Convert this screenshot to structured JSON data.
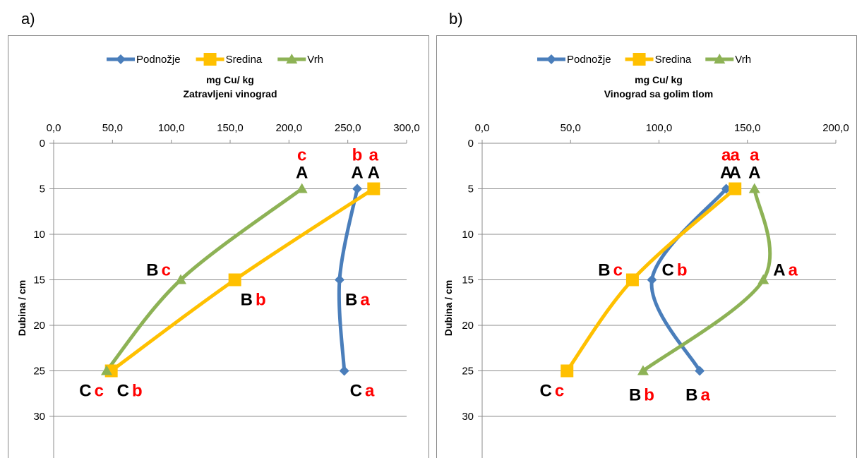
{
  "panels": [
    {
      "label": "a)"
    },
    {
      "label": "b)"
    }
  ],
  "chart_data": [
    {
      "type": "line",
      "title": "mg Cu/ kg",
      "subtitle": "Zatravljeni vinograd",
      "xlabel": "",
      "ylabel": "Dubina / cm",
      "xlim": [
        0,
        300
      ],
      "x_ticks": [
        "0,0",
        "50,0",
        "100,0",
        "150,0",
        "200,0",
        "250,0",
        "300,0"
      ],
      "ylim": [
        0,
        30
      ],
      "y_reversed": true,
      "y_ticks": [
        "0",
        "5",
        "10",
        "15",
        "20",
        "25",
        "30"
      ],
      "x_axis_position": "top",
      "grid": true,
      "legend_position": "top",
      "series": [
        {
          "name": "Podnožje",
          "color": "#4A7EBB",
          "marker": "diamond",
          "points": [
            {
              "x": 258,
              "y": 5
            },
            {
              "x": 243,
              "y": 15
            },
            {
              "x": 247,
              "y": 25
            }
          ],
          "labels": [
            {
              "upper": "A",
              "lower": "b",
              "pos": "above"
            },
            {
              "upper": "B",
              "lower": "a",
              "pos": "below-right"
            },
            {
              "upper": "C",
              "lower": "a",
              "pos": "below-right"
            }
          ]
        },
        {
          "name": "Sredina",
          "color": "#FFC000",
          "marker": "square",
          "points": [
            {
              "x": 272,
              "y": 5
            },
            {
              "x": 154,
              "y": 15
            },
            {
              "x": 49,
              "y": 25
            }
          ],
          "labels": [
            {
              "upper": "A",
              "lower": "a",
              "pos": "above"
            },
            {
              "upper": "B",
              "lower": "b",
              "pos": "below-right"
            },
            {
              "upper": "C",
              "lower": "b",
              "pos": "below-right"
            }
          ]
        },
        {
          "name": "Vrh",
          "color": "#8DB255",
          "marker": "triangle",
          "points": [
            {
              "x": 211,
              "y": 5
            },
            {
              "x": 108,
              "y": 15
            },
            {
              "x": 45,
              "y": 25
            }
          ],
          "labels": [
            {
              "upper": "A",
              "lower": "c",
              "pos": "above"
            },
            {
              "upper": "B",
              "lower": "c",
              "pos": "left"
            },
            {
              "upper": "C",
              "lower": "c",
              "pos": "below-left"
            }
          ]
        }
      ]
    },
    {
      "type": "line",
      "title": "mg Cu/ kg",
      "subtitle": "Vinograd sa golim tlom",
      "xlabel": "",
      "ylabel": "Dubina / cm",
      "xlim": [
        0,
        200
      ],
      "x_ticks": [
        "0,0",
        "50,0",
        "100,0",
        "150,0",
        "200,0"
      ],
      "ylim": [
        0,
        30
      ],
      "y_reversed": true,
      "y_ticks": [
        "0",
        "5",
        "10",
        "15",
        "20",
        "25",
        "30"
      ],
      "x_axis_position": "top",
      "grid": true,
      "legend_position": "top",
      "series": [
        {
          "name": "Podnožje",
          "color": "#4A7EBB",
          "marker": "diamond",
          "points": [
            {
              "x": 138,
              "y": 5
            },
            {
              "x": 96,
              "y": 15
            },
            {
              "x": 123,
              "y": 25
            }
          ],
          "labels": [
            {
              "upper": "A",
              "lower": "a",
              "pos": "above"
            },
            {
              "upper": "C",
              "lower": "b",
              "pos": "right"
            },
            {
              "upper": "B",
              "lower": "a",
              "pos": "below"
            }
          ]
        },
        {
          "name": "Sredina",
          "color": "#FFC000",
          "marker": "square",
          "points": [
            {
              "x": 143,
              "y": 5
            },
            {
              "x": 85,
              "y": 15
            },
            {
              "x": 48,
              "y": 25
            }
          ],
          "labels": [
            {
              "upper": "A",
              "lower": "a",
              "pos": "above"
            },
            {
              "upper": "B",
              "lower": "c",
              "pos": "left"
            },
            {
              "upper": "C",
              "lower": "c",
              "pos": "below-left"
            }
          ]
        },
        {
          "name": "Vrh",
          "color": "#8DB255",
          "marker": "triangle",
          "points": [
            {
              "x": 154,
              "y": 5
            },
            {
              "x": 159,
              "y": 15
            },
            {
              "x": 91,
              "y": 25
            }
          ],
          "labels": [
            {
              "upper": "A",
              "lower": "a",
              "pos": "above"
            },
            {
              "upper": "A",
              "lower": "a",
              "pos": "right"
            },
            {
              "upper": "B",
              "lower": "b",
              "pos": "below"
            }
          ]
        }
      ]
    }
  ]
}
